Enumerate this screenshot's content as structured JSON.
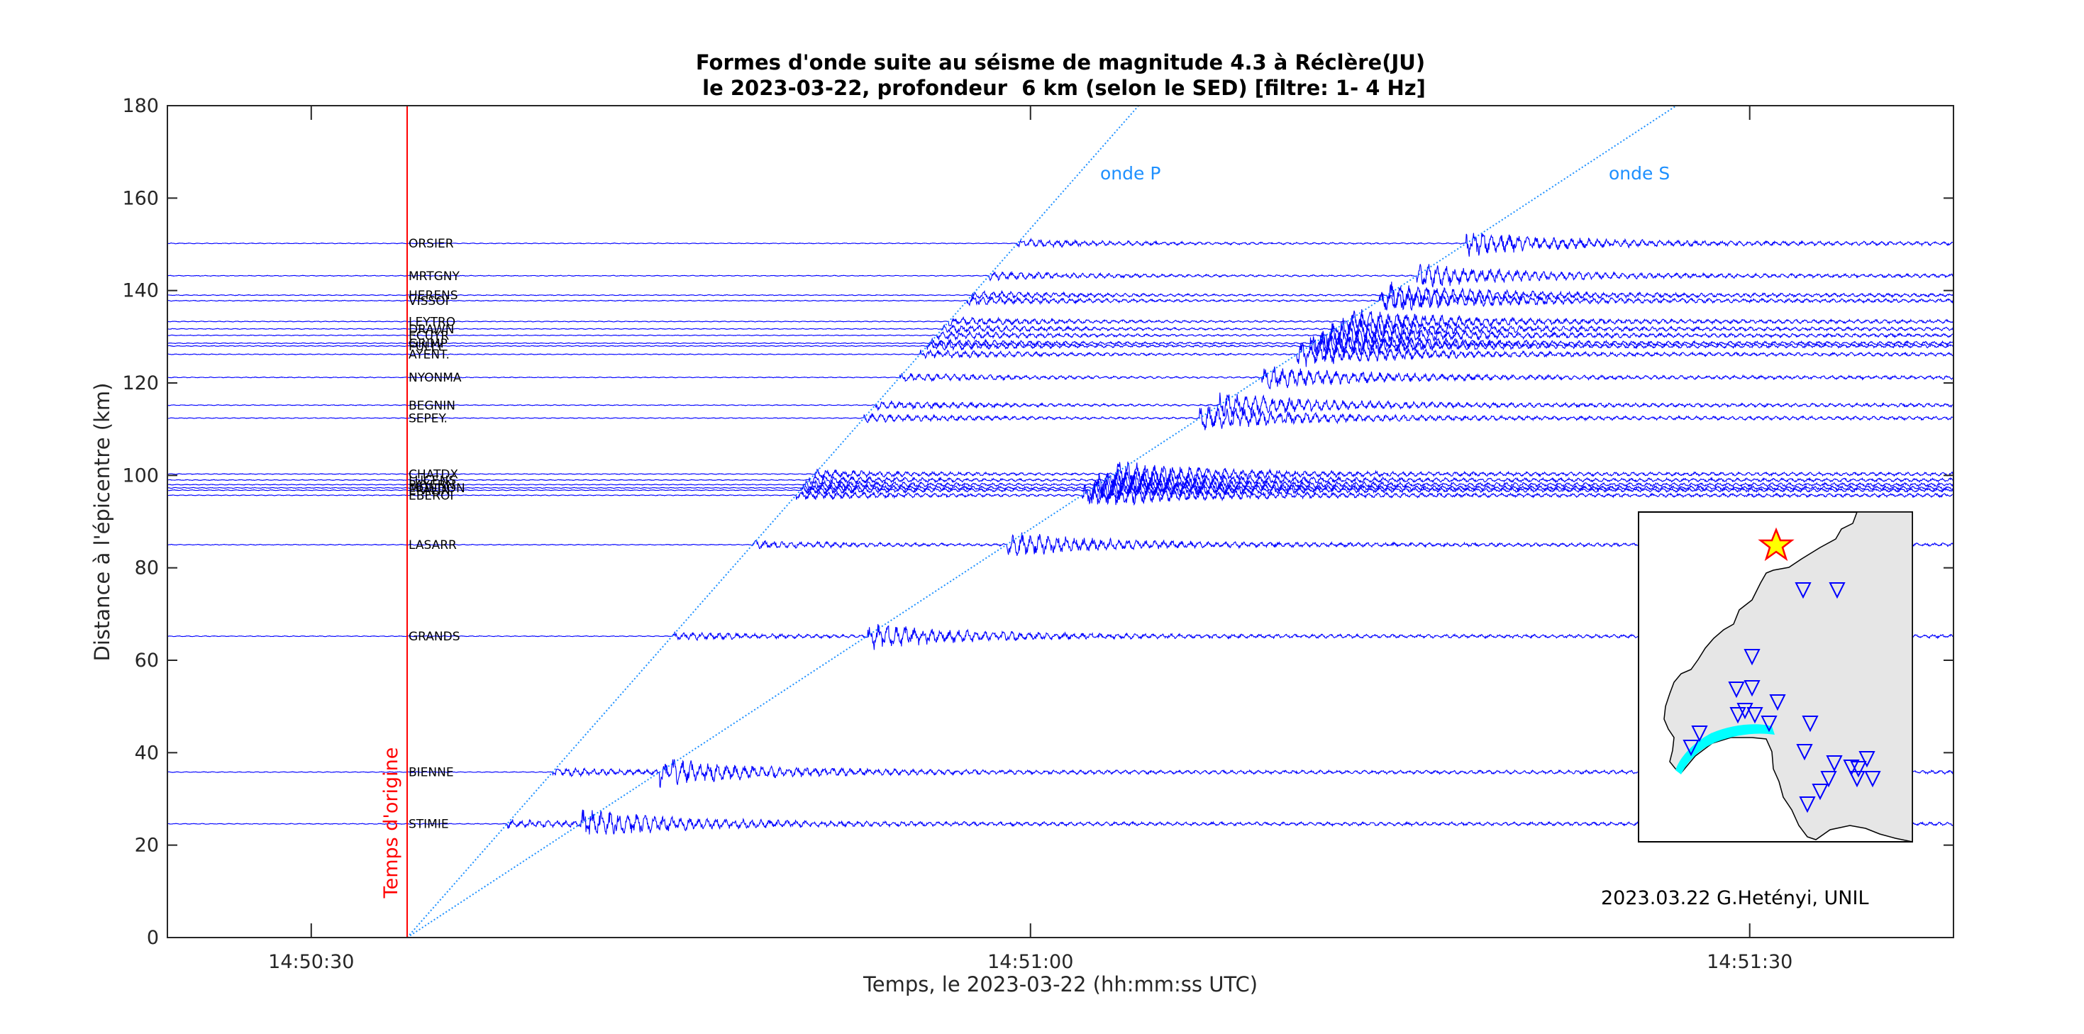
{
  "chart_data": {
    "type": "line",
    "title_lines": [
      "Formes d'onde suite au séisme de magnitude 4.3 à Réclère(JU)",
      " le 2023-03-22, profondeur  6 km (selon le SED) [filtre: 1- 4 Hz]"
    ],
    "xlabel": "Temps, le 2023-03-22 (hh:mm:ss UTC)",
    "ylabel": "Distance à l'épicentre (km)",
    "x_ticks": [
      {
        "t": "14:50:30",
        "label": "14:50:30"
      },
      {
        "t": "14:51:00",
        "label": "14:51:00"
      },
      {
        "t": "14:51:30",
        "label": "14:51:30"
      }
    ],
    "xlim": [
      "14:50:24",
      "14:51:38.5"
    ],
    "ylim": [
      0,
      180
    ],
    "y_ticks": [
      0,
      20,
      40,
      60,
      80,
      100,
      120,
      140,
      160,
      180
    ],
    "origin_time": "14:50:34",
    "origin_label": "Temps d'origine",
    "origin_color": "#ff0000",
    "trace_color": "#0000ff",
    "wave_color": "#1e90ff",
    "phase_lines": [
      {
        "name": "onde P",
        "velocity_km_s": 5.9
      },
      {
        "name": "onde S",
        "velocity_km_s": 3.4
      }
    ],
    "stations": [
      {
        "name": "ORSIER",
        "distance_km": 150.2
      },
      {
        "name": "MRTGNY",
        "distance_km": 143.2
      },
      {
        "name": "HERENS",
        "distance_km": 139.0
      },
      {
        "name": "VISSOI",
        "distance_km": 137.8
      },
      {
        "name": "LEYTRO",
        "distance_km": 133.3
      },
      {
        "name": "DRAWN",
        "distance_km": 131.7
      },
      {
        "name": "ECUYR",
        "distance_km": 130.3
      },
      {
        "name": "GRIMP",
        "distance_km": 128.6
      },
      {
        "name": "FULLY",
        "distance_km": 128.0
      },
      {
        "name": "AYENT.",
        "distance_km": 126.2
      },
      {
        "name": "NYONMA",
        "distance_km": 121.2
      },
      {
        "name": "BEGNIN",
        "distance_km": 115.2
      },
      {
        "name": "SEPEY.",
        "distance_km": 112.4
      },
      {
        "name": "CHATDX",
        "distance_km": 100.3
      },
      {
        "name": "LUCENS",
        "distance_km": 99.0
      },
      {
        "name": "PAYERN",
        "distance_km": 98.0
      },
      {
        "name": "MOUDON",
        "distance_km": 97.3
      },
      {
        "name": "EPALIN",
        "distance_km": 96.8
      },
      {
        "name": "EBEROI",
        "distance_km": 95.7
      },
      {
        "name": "LASARR",
        "distance_km": 85.0
      },
      {
        "name": "GRANDS",
        "distance_km": 65.2
      },
      {
        "name": "BIENNE",
        "distance_km": 35.8
      },
      {
        "name": "STIMIE",
        "distance_km": 24.6
      }
    ],
    "inset_map": {
      "land_color": "#e6e6e6",
      "lake_color": "#00ffff",
      "epicenter_color": "#ffff00",
      "epicenter_edge": "#ff0000",
      "station_marker_color": "#0000ff"
    },
    "credit": "2023.03.22 G.Hetényi, UNIL"
  }
}
